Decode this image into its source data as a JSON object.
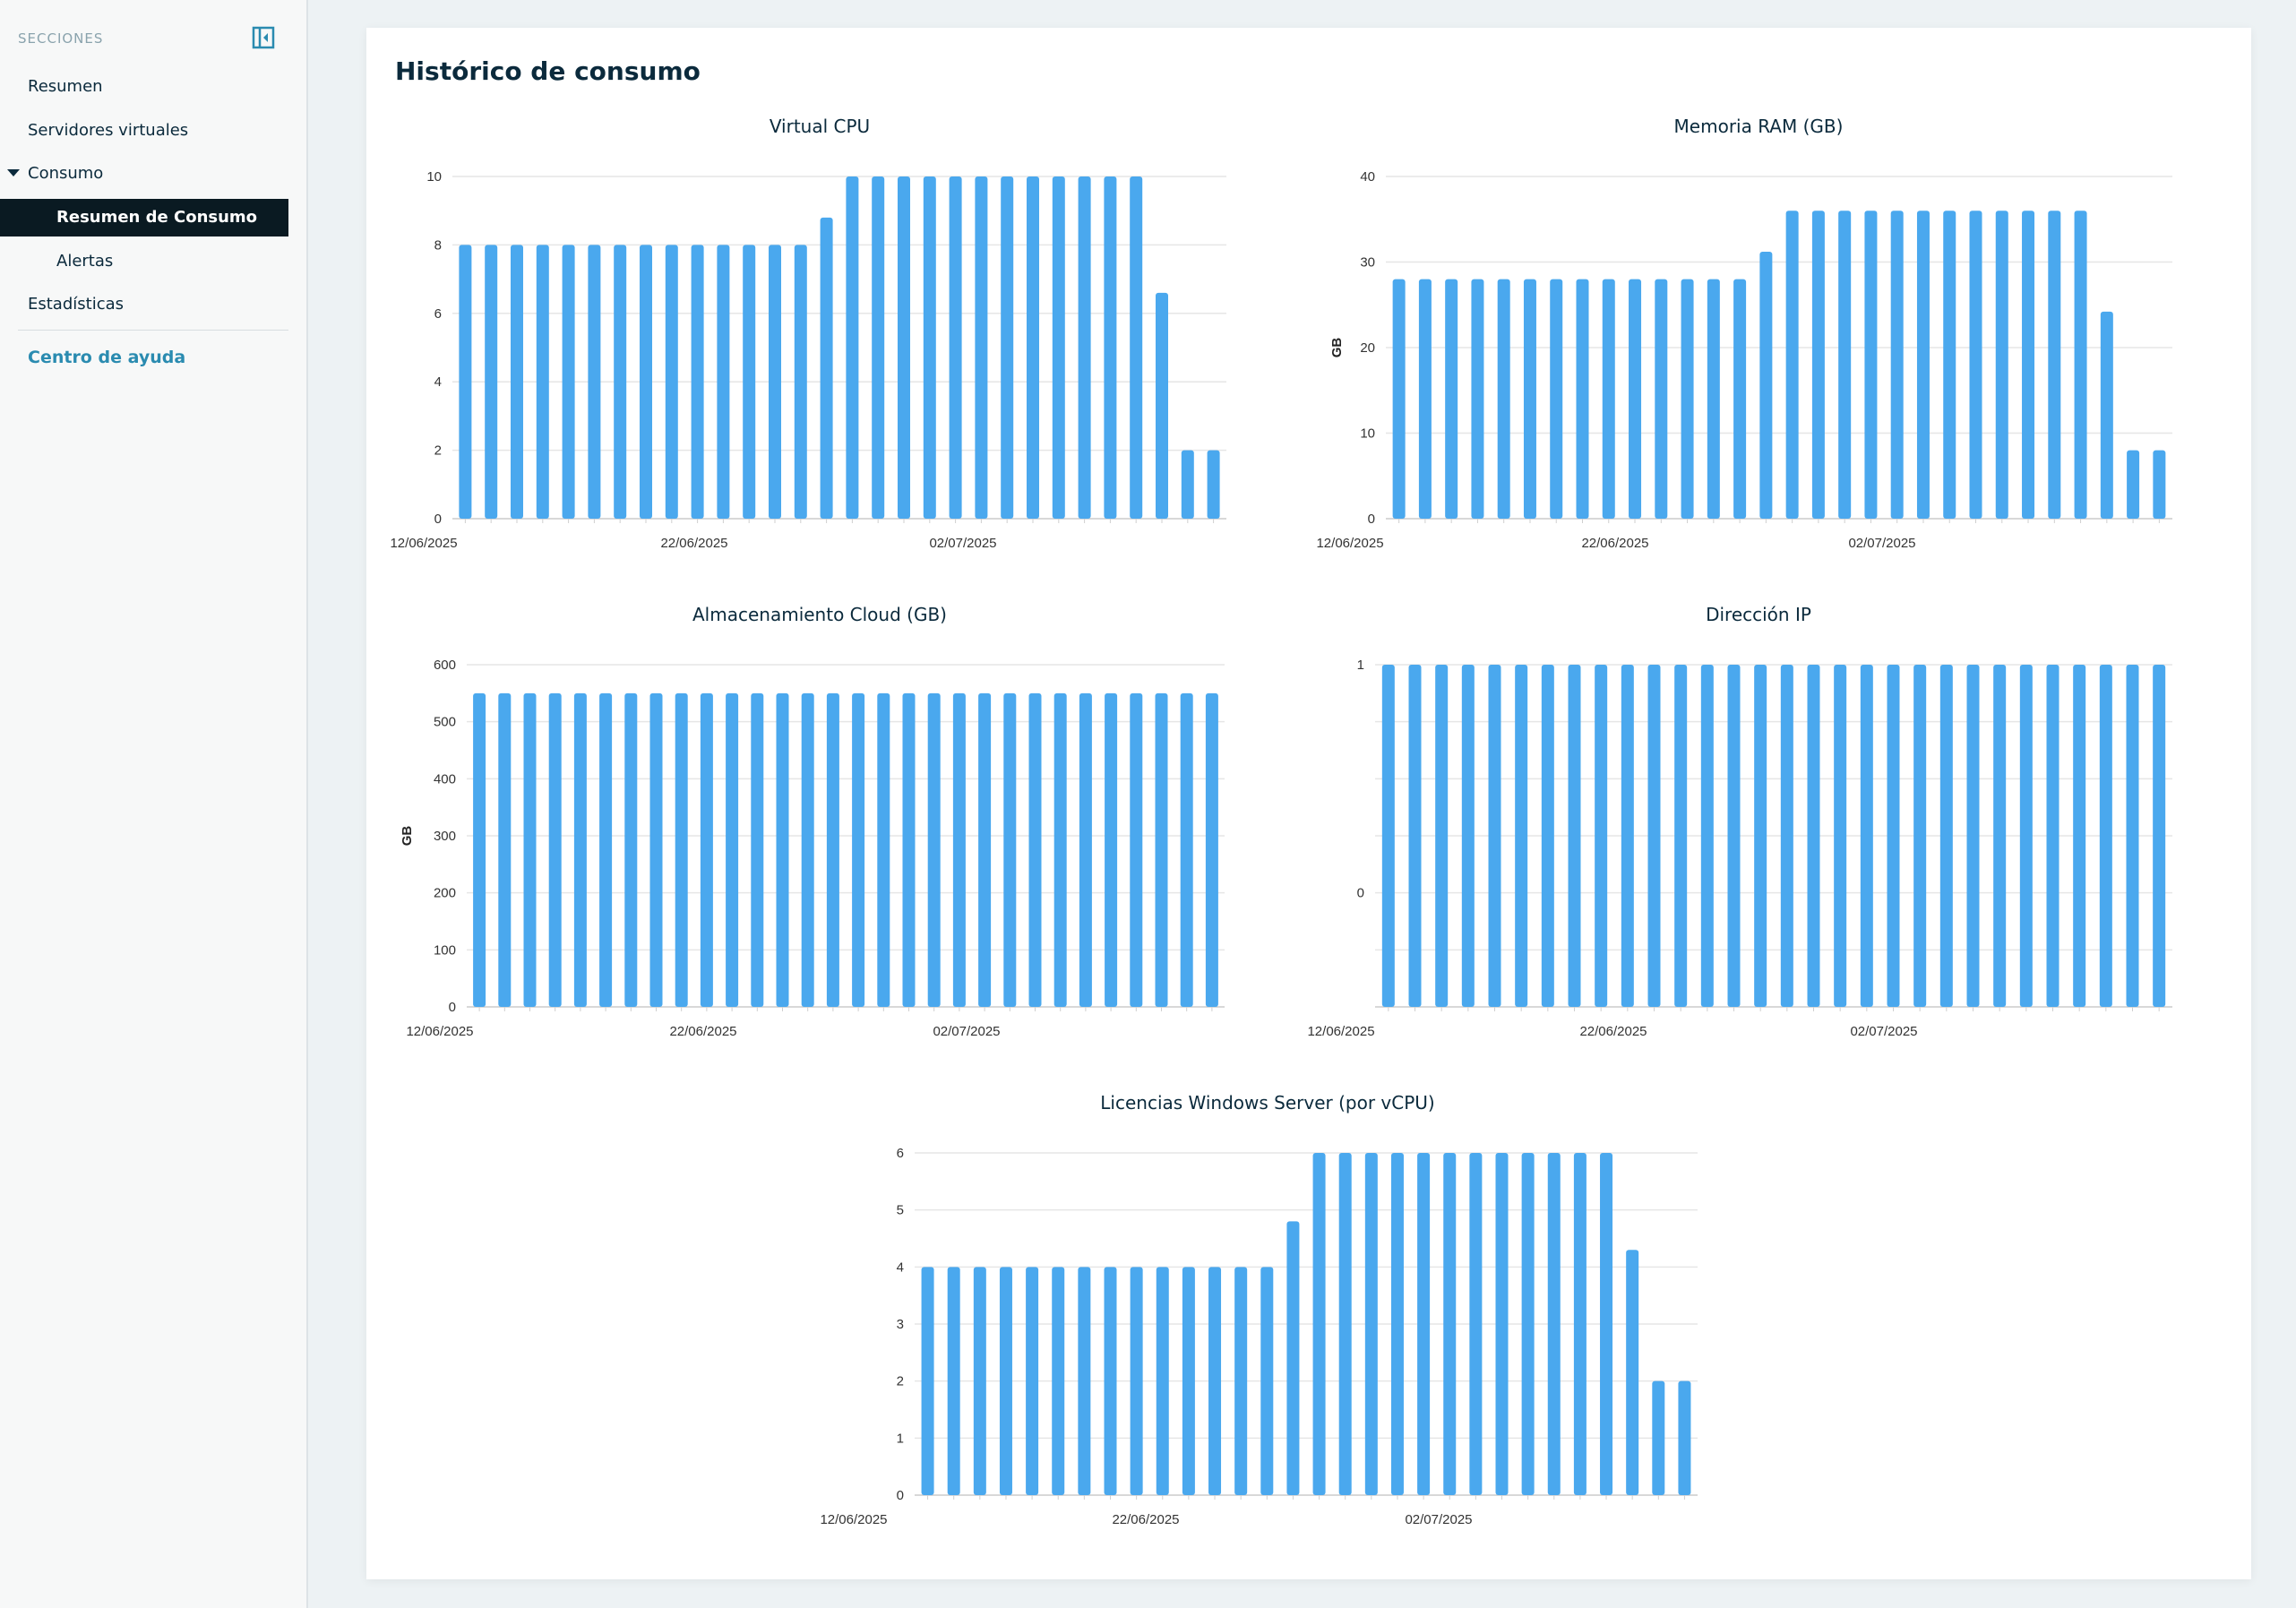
{
  "sidebar": {
    "header": "SECCIONES",
    "items": {
      "resumen": "Resumen",
      "servidores": "Servidores virtuales",
      "consumo": "Consumo",
      "resumen_consumo": "Resumen de Consumo",
      "alertas": "Alertas",
      "estadisticas": "Estadísticas"
    },
    "help": "Centro de ayuda",
    "icons": {
      "collapse": "collapse-sidebar-icon",
      "expand": "caret-down-icon"
    }
  },
  "main": {
    "title": "Histórico de consumo"
  },
  "colors": {
    "bar": "#4aa8ee",
    "grid": "#e6e6e6",
    "active_bg": "#0a1a22",
    "link": "#2a8bb0"
  },
  "chart_data": [
    {
      "id": "vcpu",
      "type": "bar",
      "title": "Virtual CPU",
      "ylabel": "",
      "ylim": [
        0,
        10
      ],
      "yticks": [
        0,
        2,
        4,
        6,
        8,
        10
      ],
      "x_tick_labels": [
        "12/06/2025",
        "22/06/2025",
        "02/07/2025"
      ],
      "values": [
        8,
        8,
        8,
        8,
        8,
        8,
        8,
        8,
        8,
        8,
        8,
        8,
        8,
        8,
        8.8,
        10,
        10,
        10,
        10,
        10,
        10,
        10,
        10,
        10,
        10,
        10,
        10,
        6.6,
        2,
        2
      ]
    },
    {
      "id": "ram",
      "type": "bar",
      "title": "Memoria RAM (GB)",
      "ylabel": "GB",
      "ylim": [
        0,
        40
      ],
      "yticks": [
        0,
        10,
        20,
        30,
        40
      ],
      "x_tick_labels": [
        "12/06/2025",
        "22/06/2025",
        "02/07/2025"
      ],
      "values": [
        28,
        28,
        28,
        28,
        28,
        28,
        28,
        28,
        28,
        28,
        28,
        28,
        28,
        28,
        31.2,
        36,
        36,
        36,
        36,
        36,
        36,
        36,
        36,
        36,
        36,
        36,
        36,
        24.2,
        8,
        8
      ]
    },
    {
      "id": "storage",
      "type": "bar",
      "title": "Almacenamiento Cloud (GB)",
      "ylabel": "GB",
      "ylim": [
        0,
        600
      ],
      "yticks": [
        0,
        100,
        200,
        300,
        400,
        500,
        600
      ],
      "x_tick_labels": [
        "12/06/2025",
        "22/06/2025",
        "02/07/2025"
      ],
      "values": [
        550,
        550,
        550,
        550,
        550,
        550,
        550,
        550,
        550,
        550,
        550,
        550,
        550,
        550,
        550,
        550,
        550,
        550,
        550,
        550,
        550,
        550,
        550,
        550,
        550,
        550,
        550,
        550,
        550,
        550
      ]
    },
    {
      "id": "ip",
      "type": "bar",
      "title": "Dirección IP",
      "ylabel": "",
      "ylim": [
        -0.5,
        1
      ],
      "yticks": [
        0,
        1
      ],
      "x_tick_labels": [
        "12/06/2025",
        "22/06/2025",
        "02/07/2025"
      ],
      "values": [
        1,
        1,
        1,
        1,
        1,
        1,
        1,
        1,
        1,
        1,
        1,
        1,
        1,
        1,
        1,
        1,
        1,
        1,
        1,
        1,
        1,
        1,
        1,
        1,
        1,
        1,
        1,
        1,
        1,
        1
      ]
    },
    {
      "id": "licenses",
      "type": "bar",
      "title": "Licencias Windows Server (por vCPU)",
      "ylabel": "",
      "ylim": [
        0,
        6
      ],
      "yticks": [
        0,
        1,
        2,
        3,
        4,
        5,
        6
      ],
      "x_tick_labels": [
        "12/06/2025",
        "22/06/2025",
        "02/07/2025"
      ],
      "values": [
        4,
        4,
        4,
        4,
        4,
        4,
        4,
        4,
        4,
        4,
        4,
        4,
        4,
        4,
        4.8,
        6,
        6,
        6,
        6,
        6,
        6,
        6,
        6,
        6,
        6,
        6,
        6,
        4.3,
        2,
        2
      ]
    }
  ]
}
